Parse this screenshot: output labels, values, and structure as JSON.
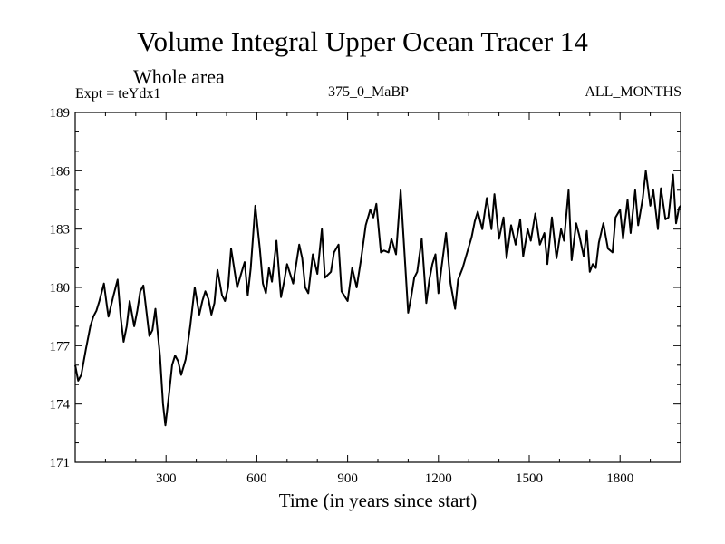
{
  "header": {
    "title": "Volume Integral Upper Ocean Tracer 14",
    "subtitle": "Whole area",
    "experiment": "Expt = teYdx1",
    "run": "375_0_MaBP",
    "months": "ALL_MONTHS"
  },
  "chart_data": {
    "type": "line",
    "title": "Volume Integral Upper Ocean Tracer 14",
    "subtitle": "Whole area",
    "xlabel": "Time (in years since start)",
    "ylabel": "",
    "xlim": [
      0,
      2000
    ],
    "ylim": [
      171,
      189
    ],
    "xticks": [
      300,
      600,
      900,
      1200,
      1500,
      1800
    ],
    "yticks": [
      171,
      174,
      177,
      180,
      183,
      186,
      189
    ],
    "grid": false,
    "series": [
      {
        "name": "Volume Integral Upper Ocean Tracer 14",
        "x": [
          0,
          10,
          20,
          35,
          50,
          60,
          70,
          80,
          95,
          105,
          110,
          125,
          140,
          150,
          160,
          170,
          180,
          195,
          205,
          215,
          225,
          235,
          245,
          255,
          265,
          280,
          290,
          298,
          310,
          320,
          330,
          340,
          350,
          365,
          380,
          395,
          410,
          420,
          430,
          440,
          450,
          460,
          470,
          485,
          495,
          505,
          515,
          535,
          550,
          560,
          570,
          580,
          595,
          610,
          620,
          630,
          640,
          650,
          665,
          680,
          690,
          700,
          720,
          740,
          750,
          760,
          770,
          785,
          800,
          815,
          825,
          845,
          855,
          870,
          880,
          900,
          915,
          930,
          945,
          960,
          975,
          985,
          995,
          1010,
          1020,
          1035,
          1045,
          1060,
          1075,
          1090,
          1100,
          1110,
          1120,
          1130,
          1145,
          1160,
          1170,
          1180,
          1190,
          1200,
          1210,
          1225,
          1240,
          1255,
          1265,
          1280,
          1295,
          1310,
          1320,
          1330,
          1345,
          1360,
          1375,
          1385,
          1400,
          1415,
          1425,
          1440,
          1455,
          1470,
          1480,
          1495,
          1505,
          1520,
          1535,
          1550,
          1560,
          1575,
          1590,
          1605,
          1615,
          1630,
          1640,
          1655,
          1665,
          1680,
          1690,
          1700,
          1710,
          1720,
          1730,
          1745,
          1760,
          1775,
          1785,
          1800,
          1810,
          1825,
          1835,
          1850,
          1860,
          1875,
          1885,
          1900,
          1910,
          1925,
          1935,
          1950,
          1960,
          1975,
          1985,
          1995,
          2000
        ],
        "y": [
          176.0,
          175.2,
          175.5,
          176.8,
          178.0,
          178.5,
          178.8,
          179.3,
          180.2,
          179.0,
          178.5,
          179.5,
          180.4,
          178.5,
          177.2,
          178.0,
          179.3,
          178.0,
          178.8,
          179.8,
          180.1,
          178.8,
          177.5,
          177.8,
          178.9,
          176.5,
          174.0,
          172.9,
          174.5,
          176.0,
          176.5,
          176.2,
          175.5,
          176.3,
          178.0,
          180.0,
          178.6,
          179.3,
          179.8,
          179.4,
          178.6,
          179.2,
          180.9,
          179.6,
          179.3,
          180.0,
          182.0,
          180.0,
          180.8,
          181.3,
          179.6,
          181.0,
          184.2,
          182.0,
          180.2,
          179.7,
          181.0,
          180.3,
          182.4,
          179.5,
          180.3,
          181.2,
          180.2,
          182.2,
          181.5,
          180.0,
          179.7,
          181.7,
          180.7,
          183.0,
          180.5,
          180.8,
          181.8,
          182.2,
          179.8,
          179.3,
          181.0,
          180.0,
          181.5,
          183.2,
          184.0,
          183.6,
          184.3,
          181.8,
          181.9,
          181.8,
          182.5,
          181.7,
          185.0,
          181.2,
          178.7,
          179.5,
          180.5,
          180.8,
          182.5,
          179.2,
          180.4,
          181.2,
          181.7,
          179.7,
          181.0,
          182.8,
          180.2,
          178.9,
          180.4,
          181.0,
          181.8,
          182.6,
          183.4,
          183.9,
          183.0,
          184.6,
          183.0,
          184.8,
          182.5,
          183.6,
          181.5,
          183.2,
          182.2,
          183.5,
          181.6,
          183.0,
          182.4,
          183.8,
          182.2,
          182.8,
          181.2,
          183.6,
          181.5,
          183.0,
          182.4,
          185.0,
          181.4,
          183.3,
          182.7,
          181.6,
          182.9,
          180.8,
          181.2,
          181.0,
          182.3,
          183.3,
          182.0,
          181.8,
          183.6,
          184.0,
          182.5,
          184.5,
          182.8,
          185.0,
          183.2,
          184.6,
          186.0,
          184.2,
          185.0,
          183.0,
          185.1,
          183.5,
          183.6,
          185.8,
          183.3,
          184.1,
          184.2
        ]
      }
    ]
  }
}
